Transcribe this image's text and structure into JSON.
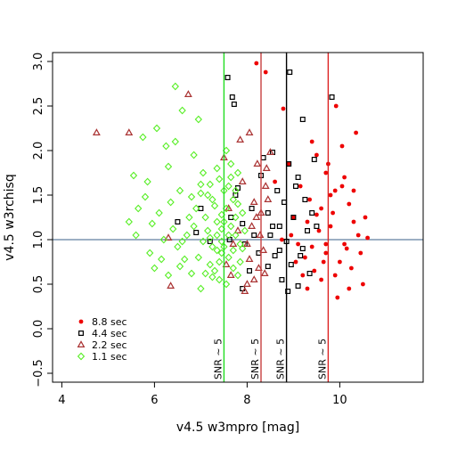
{
  "chart_data": {
    "type": "scatter",
    "xlabel": "v4.5 w3mpro [mag]",
    "ylabel": "v4.5 w3rchisq",
    "xlim": [
      3.8,
      11.8
    ],
    "ylim": [
      -0.6,
      3.1
    ],
    "xticks": [
      "4",
      "6",
      "8",
      "10"
    ],
    "yticks": [
      "−0.5",
      "0.0",
      "0.5",
      "1.0",
      "1.5",
      "2.0",
      "2.5",
      "3.0"
    ],
    "grid": false,
    "legend_position": "bottom-left",
    "hline": {
      "y": 1.0,
      "color": "#3a5f8a"
    },
    "vlines": [
      {
        "x": 7.5,
        "color": "#22dd22",
        "label": "SNR ~ 5"
      },
      {
        "x": 8.3,
        "color": "#c84040",
        "label": "SNR ~ 5"
      },
      {
        "x": 8.85,
        "color": "#000000",
        "label": "SNR ~ 5"
      },
      {
        "x": 9.75,
        "color": "#dd2222",
        "label": "SNR ~ 5"
      }
    ],
    "series": [
      {
        "name": "8.8 sec",
        "marker": "dot",
        "color": "#ee0000",
        "spread_note": "",
        "points": [
          [
            8.2,
            2.98
          ],
          [
            8.78,
            2.47
          ],
          [
            9.92,
            2.5
          ],
          [
            10.35,
            2.2
          ],
          [
            10.05,
            2.05
          ],
          [
            8.4,
            2.88
          ],
          [
            9.5,
            1.95
          ],
          [
            9.75,
            1.85
          ],
          [
            10.1,
            1.7
          ],
          [
            9.9,
            1.55
          ],
          [
            10.2,
            1.4
          ],
          [
            9.6,
            1.35
          ],
          [
            9.3,
            1.2
          ],
          [
            9.8,
            1.15
          ],
          [
            10.4,
            1.05
          ],
          [
            9.4,
            0.92
          ],
          [
            9.7,
            0.85
          ],
          [
            10.0,
            0.75
          ],
          [
            9.2,
            0.6
          ],
          [
            9.9,
            0.6
          ],
          [
            10.5,
            0.5
          ],
          [
            10.2,
            0.45
          ],
          [
            9.65,
            0.75
          ],
          [
            9.1,
            0.95
          ],
          [
            9.55,
            1.1
          ],
          [
            10.3,
            1.2
          ],
          [
            9.85,
            1.3
          ],
          [
            10.6,
            1.02
          ],
          [
            9.35,
            1.45
          ],
          [
            10.1,
            0.95
          ],
          [
            9.0,
            1.25
          ],
          [
            9.45,
            0.65
          ],
          [
            10.05,
            1.6
          ],
          [
            9.7,
            1.75
          ],
          [
            8.95,
            1.05
          ],
          [
            9.25,
            0.8
          ],
          [
            10.45,
            0.85
          ],
          [
            9.6,
            0.55
          ],
          [
            10.25,
            0.68
          ],
          [
            9.8,
            1.5
          ],
          [
            8.6,
            1.65
          ],
          [
            8.75,
            1.0
          ],
          [
            9.05,
            0.75
          ],
          [
            9.15,
            1.6
          ],
          [
            10.15,
            0.9
          ],
          [
            9.5,
            1.28
          ],
          [
            10.3,
            1.55
          ],
          [
            9.95,
            0.35
          ],
          [
            9.4,
            2.1
          ],
          [
            8.9,
            1.85
          ],
          [
            9.7,
            0.95
          ],
          [
            10.55,
            1.25
          ],
          [
            9.3,
            0.45
          ]
        ]
      },
      {
        "name": "4.4 sec",
        "marker": "square",
        "color": "#000000",
        "points": [
          [
            7.58,
            2.82
          ],
          [
            7.68,
            2.6
          ],
          [
            7.72,
            2.52
          ],
          [
            8.92,
            2.88
          ],
          [
            9.83,
            2.6
          ],
          [
            9.2,
            2.35
          ],
          [
            9.45,
            1.9
          ],
          [
            8.55,
            1.98
          ],
          [
            8.9,
            1.85
          ],
          [
            9.1,
            1.7
          ],
          [
            8.65,
            1.55
          ],
          [
            8.8,
            1.42
          ],
          [
            8.45,
            1.3
          ],
          [
            9.0,
            1.25
          ],
          [
            8.7,
            1.15
          ],
          [
            9.3,
            1.1
          ],
          [
            8.5,
            1.05
          ],
          [
            8.85,
            0.98
          ],
          [
            9.2,
            0.9
          ],
          [
            8.6,
            0.82
          ],
          [
            8.95,
            0.72
          ],
          [
            9.35,
            0.62
          ],
          [
            8.75,
            0.55
          ],
          [
            9.1,
            0.48
          ],
          [
            8.3,
            1.72
          ],
          [
            8.1,
            1.35
          ],
          [
            7.9,
            1.18
          ],
          [
            7.8,
            1.58
          ],
          [
            7.62,
            1.0
          ],
          [
            7.95,
            0.95
          ],
          [
            8.25,
            0.85
          ],
          [
            8.05,
            0.65
          ],
          [
            7.9,
            0.45
          ],
          [
            6.5,
            1.2
          ],
          [
            6.9,
            1.08
          ],
          [
            7.2,
            0.98
          ],
          [
            7.0,
            1.35
          ],
          [
            9.5,
            1.15
          ],
          [
            9.25,
            1.45
          ],
          [
            8.45,
            0.7
          ],
          [
            9.05,
            1.6
          ],
          [
            8.35,
            1.92
          ],
          [
            8.88,
            0.42
          ],
          [
            9.15,
            0.82
          ],
          [
            8.55,
            1.15
          ],
          [
            8.15,
            1.05
          ],
          [
            7.75,
            1.5
          ],
          [
            9.4,
            1.3
          ],
          [
            8.7,
            0.88
          ],
          [
            7.65,
            1.25
          ]
        ]
      },
      {
        "name": "2.2 sec",
        "marker": "triangle",
        "color": "#aa3333",
        "points": [
          [
            6.73,
            2.63
          ],
          [
            4.75,
            2.2
          ],
          [
            5.45,
            2.2
          ],
          [
            6.3,
            1.02
          ],
          [
            6.35,
            0.48
          ],
          [
            7.5,
            1.92
          ],
          [
            7.85,
            2.12
          ],
          [
            8.05,
            2.2
          ],
          [
            8.22,
            1.85
          ],
          [
            8.4,
            1.6
          ],
          [
            8.15,
            1.42
          ],
          [
            8.3,
            1.3
          ],
          [
            8.1,
            1.15
          ],
          [
            8.28,
            1.05
          ],
          [
            8.0,
            0.95
          ],
          [
            8.35,
            0.88
          ],
          [
            8.05,
            0.78
          ],
          [
            8.25,
            0.68
          ],
          [
            8.15,
            0.55
          ],
          [
            7.95,
            0.42
          ],
          [
            7.6,
            1.35
          ],
          [
            7.7,
            0.95
          ],
          [
            7.55,
            0.72
          ],
          [
            7.9,
            1.65
          ],
          [
            8.45,
            1.45
          ],
          [
            8.5,
            1.98
          ],
          [
            7.8,
            1.1
          ],
          [
            8.38,
            0.62
          ],
          [
            7.65,
            0.6
          ],
          [
            8.2,
            1.25
          ],
          [
            8.0,
            0.5
          ],
          [
            8.42,
            1.8
          ]
        ]
      },
      {
        "name": "1.1 sec",
        "marker": "diamond",
        "color": "#55ee22",
        "points": [
          [
            6.45,
            2.72
          ],
          [
            6.95,
            2.35
          ],
          [
            6.6,
            2.45
          ],
          [
            6.05,
            2.25
          ],
          [
            6.25,
            2.05
          ],
          [
            5.75,
            2.15
          ],
          [
            6.45,
            2.1
          ],
          [
            6.85,
            1.95
          ],
          [
            6.3,
            1.82
          ],
          [
            5.55,
            1.72
          ],
          [
            5.85,
            1.65
          ],
          [
            6.55,
            1.55
          ],
          [
            7.0,
            1.52
          ],
          [
            5.65,
            1.35
          ],
          [
            6.1,
            1.3
          ],
          [
            5.45,
            1.2
          ],
          [
            5.95,
            1.18
          ],
          [
            5.6,
            1.05
          ],
          [
            6.2,
            1.0
          ],
          [
            6.5,
            0.92
          ],
          [
            5.9,
            0.85
          ],
          [
            6.65,
            0.78
          ],
          [
            6.0,
            0.68
          ],
          [
            6.3,
            0.6
          ],
          [
            7.1,
            1.25
          ],
          [
            7.25,
            1.45
          ],
          [
            7.35,
            1.05
          ],
          [
            7.45,
            0.85
          ],
          [
            7.2,
            0.72
          ],
          [
            7.4,
            0.55
          ],
          [
            7.55,
            1.35
          ],
          [
            7.65,
            1.15
          ],
          [
            7.75,
            1.05
          ],
          [
            7.85,
            0.95
          ],
          [
            7.5,
            0.92
          ],
          [
            7.6,
            0.8
          ],
          [
            7.7,
            0.68
          ],
          [
            7.8,
            0.6
          ],
          [
            7.25,
            0.92
          ],
          [
            7.15,
            1.1
          ],
          [
            7.05,
            0.98
          ],
          [
            7.35,
            1.2
          ],
          [
            7.45,
            1.28
          ],
          [
            7.3,
            0.65
          ],
          [
            6.95,
            0.8
          ],
          [
            7.0,
            0.45
          ],
          [
            6.8,
            0.62
          ],
          [
            7.6,
            1.6
          ],
          [
            7.7,
            1.45
          ],
          [
            7.5,
            1.55
          ],
          [
            7.4,
            1.68
          ],
          [
            7.8,
            1.75
          ],
          [
            7.65,
            1.85
          ],
          [
            7.55,
            2.0
          ],
          [
            7.35,
            1.8
          ],
          [
            7.2,
            1.62
          ],
          [
            6.75,
            1.25
          ],
          [
            6.85,
            1.15
          ],
          [
            6.7,
            1.05
          ],
          [
            6.6,
            0.98
          ],
          [
            6.4,
            1.12
          ],
          [
            7.9,
            1.3
          ],
          [
            7.95,
            1.1
          ],
          [
            7.85,
            0.75
          ],
          [
            7.45,
            0.98
          ],
          [
            7.6,
            1.05
          ],
          [
            7.3,
            1.38
          ],
          [
            7.15,
            1.5
          ],
          [
            7.75,
            1.25
          ],
          [
            7.05,
            1.75
          ],
          [
            7.4,
            0.75
          ],
          [
            7.25,
            0.58
          ],
          [
            7.55,
            0.5
          ],
          [
            7.7,
            0.88
          ],
          [
            7.8,
            1.4
          ],
          [
            6.9,
            1.35
          ],
          [
            6.55,
            0.7
          ],
          [
            6.15,
            0.78
          ],
          [
            5.8,
            1.48
          ],
          [
            6.35,
            1.42
          ],
          [
            7.65,
            1.7
          ],
          [
            7.5,
            1.2
          ],
          [
            7.35,
            0.88
          ],
          [
            7.9,
            0.9
          ],
          [
            7.1,
            0.62
          ],
          [
            6.8,
            1.48
          ],
          [
            7.0,
            1.62
          ],
          [
            7.75,
            1.55
          ],
          [
            7.45,
            1.12
          ],
          [
            7.2,
            1.02
          ]
        ]
      }
    ]
  }
}
